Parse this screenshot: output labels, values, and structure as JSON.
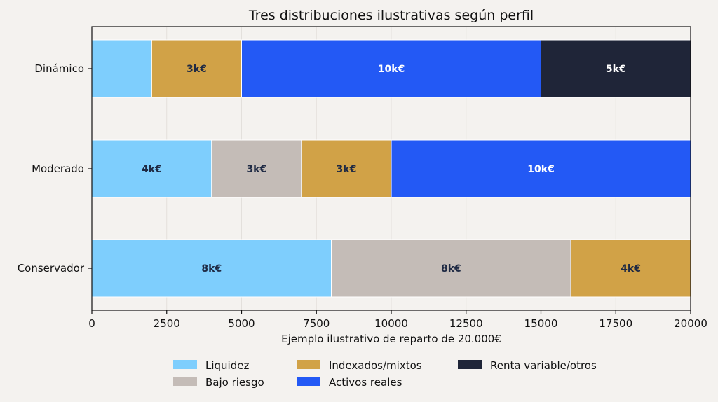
{
  "chart_data": {
    "type": "bar",
    "orientation": "horizontal",
    "stacked": true,
    "title": "Tres distribuciones ilustrativas según perfil",
    "xlabel": "Ejemplo ilustrativo de reparto de 20.000€",
    "ylabel": "",
    "xlim": [
      0,
      20000
    ],
    "xticks": [
      0,
      2500,
      5000,
      7500,
      10000,
      12500,
      15000,
      17500,
      20000
    ],
    "grid": true,
    "legend_position": "bottom",
    "categories": [
      "Conservador",
      "Moderado",
      "Dinámico"
    ],
    "series": [
      {
        "name": "Liquidez",
        "color": "#7ecefd",
        "values": [
          8000,
          4000,
          2000
        ],
        "labels": [
          "8k€",
          "4k€",
          ""
        ],
        "label_color": "#1f2a44"
      },
      {
        "name": "Bajo riesgo",
        "color": "#c4bcb7",
        "values": [
          8000,
          3000,
          0
        ],
        "labels": [
          "8k€",
          "3k€",
          ""
        ],
        "label_color": "#1f2a44"
      },
      {
        "name": "Indexados/mixtos",
        "color": "#d1a247",
        "values": [
          4000,
          3000,
          3000
        ],
        "labels": [
          "4k€",
          "3k€",
          "3k€"
        ],
        "label_color": "#1f2a44"
      },
      {
        "name": "Activos reales",
        "color": "#2359f5",
        "values": [
          0,
          10000,
          10000
        ],
        "labels": [
          "",
          "10k€",
          "10k€"
        ],
        "label_color": "#ffffff"
      },
      {
        "name": "Renta variable/otros",
        "color": "#1f2538",
        "values": [
          0,
          0,
          5000
        ],
        "labels": [
          "",
          "",
          "5k€"
        ],
        "label_color": "#ffffff"
      }
    ]
  }
}
